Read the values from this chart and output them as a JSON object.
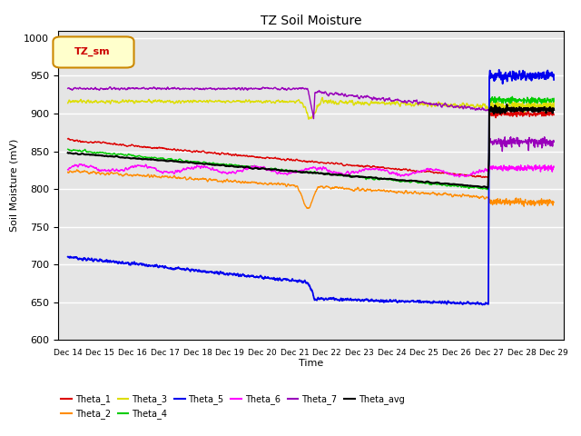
{
  "title": "TZ Soil Moisture",
  "xlabel": "Time",
  "ylabel": "Soil Moisture (mV)",
  "ylim": [
    600,
    1010
  ],
  "yticks": [
    600,
    650,
    700,
    750,
    800,
    850,
    900,
    950,
    1000
  ],
  "background_color": "#e5e5e5",
  "legend_label": "TZ_sm",
  "colors": {
    "Theta_1": "#dd0000",
    "Theta_2": "#ff8c00",
    "Theta_3": "#dddd00",
    "Theta_4": "#00cc00",
    "Theta_5": "#0000ee",
    "Theta_6": "#ff00ff",
    "Theta_7": "#9900bb",
    "Theta_avg": "#000000"
  },
  "n_days": 15,
  "jump_day": 13
}
